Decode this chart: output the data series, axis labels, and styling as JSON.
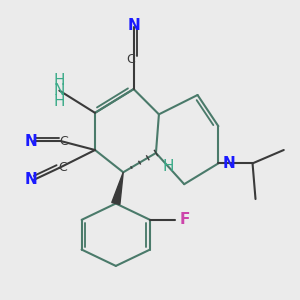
{
  "bg_color": "#ebebeb",
  "bond_color": "#3a3a3a",
  "bond_width": 1.5,
  "dbo": 0.012,
  "ring_bond_color": "#4a7a6a",
  "label_colors": {
    "N": "#1a1aff",
    "C": "#3a3a3a",
    "NH2": "#3aaa88",
    "H": "#3aaa88",
    "F": "#cc44aa"
  }
}
